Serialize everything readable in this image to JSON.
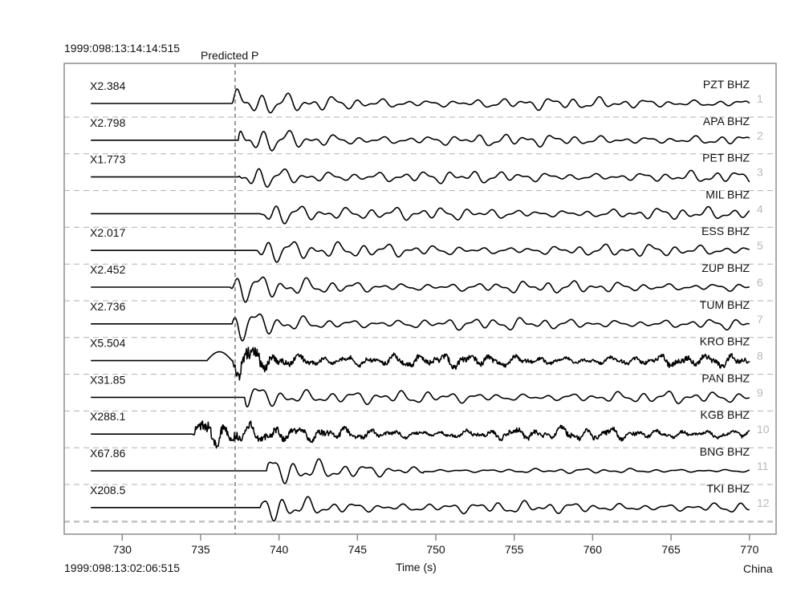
{
  "header": {
    "start_time": "1999:098:13:14:14:515",
    "predicted_phase_label": "Predicted P"
  },
  "footer": {
    "origin_time": "1999:098:13:02:06:515",
    "region": "China"
  },
  "colors": {
    "trace": "#000000",
    "frame": "#8c8c8c",
    "separator": "#b0b0b0",
    "index_text": "#b8b8b8",
    "marker": "#555555"
  },
  "chart_data": {
    "type": "line",
    "title": "",
    "xlabel": "Time (s)",
    "ylabel": "",
    "xlim": [
      726.3,
      771.7
    ],
    "x_ticks": [
      730,
      735,
      740,
      745,
      750,
      755,
      760,
      765,
      770
    ],
    "x_tick_labels": [
      "730",
      "735",
      "740",
      "745",
      "750",
      "755",
      "760",
      "765",
      "770"
    ],
    "grid": false,
    "predicted_p_time": 737.2,
    "trace_x_range": [
      728,
      770
    ],
    "traces": [
      {
        "index": "1",
        "station": "PZT BHZ",
        "scale": "X2.384",
        "onset": 737.0,
        "pre_bump": false,
        "noise": false,
        "quiet_after": false
      },
      {
        "index": "2",
        "station": "APA BHZ",
        "scale": "X2.798",
        "onset": 737.4,
        "pre_bump": false,
        "noise": false,
        "quiet_after": false
      },
      {
        "index": "3",
        "station": "PET BHZ",
        "scale": "X1.773",
        "onset": 737.4,
        "pre_bump": false,
        "noise": false,
        "quiet_after": false
      },
      {
        "index": "4",
        "station": "MIL BHZ",
        "scale": "",
        "onset": 738.8,
        "pre_bump": false,
        "noise": false,
        "quiet_after": false
      },
      {
        "index": "5",
        "station": "ESS BHZ",
        "scale": "X2.017",
        "onset": 738.6,
        "pre_bump": false,
        "noise": false,
        "quiet_after": false
      },
      {
        "index": "6",
        "station": "ZUP BHZ",
        "scale": "X2.452",
        "onset": 736.9,
        "pre_bump": false,
        "noise": false,
        "quiet_after": false
      },
      {
        "index": "7",
        "station": "TUM BHZ",
        "scale": "X2.736",
        "onset": 737.0,
        "pre_bump": false,
        "noise": false,
        "quiet_after": false
      },
      {
        "index": "8",
        "station": "KRO BHZ",
        "scale": "X5.504",
        "onset": 737.0,
        "pre_bump": true,
        "noise": true,
        "quiet_after": false
      },
      {
        "index": "9",
        "station": "PAN BHZ",
        "scale": "X31.85",
        "onset": 737.8,
        "pre_bump": false,
        "noise": false,
        "quiet_after": false
      },
      {
        "index": "10",
        "station": "KGB BHZ",
        "scale": "X288.1",
        "onset": 734.5,
        "pre_bump": false,
        "noise": true,
        "quiet_after": false
      },
      {
        "index": "11",
        "station": "BNG BHZ",
        "scale": "X67.86",
        "onset": 739.2,
        "pre_bump": false,
        "noise": false,
        "quiet_after": true
      },
      {
        "index": "12",
        "station": "TKI BHZ",
        "scale": "X208.5",
        "onset": 738.8,
        "pre_bump": false,
        "noise": false,
        "quiet_after": false
      }
    ]
  }
}
